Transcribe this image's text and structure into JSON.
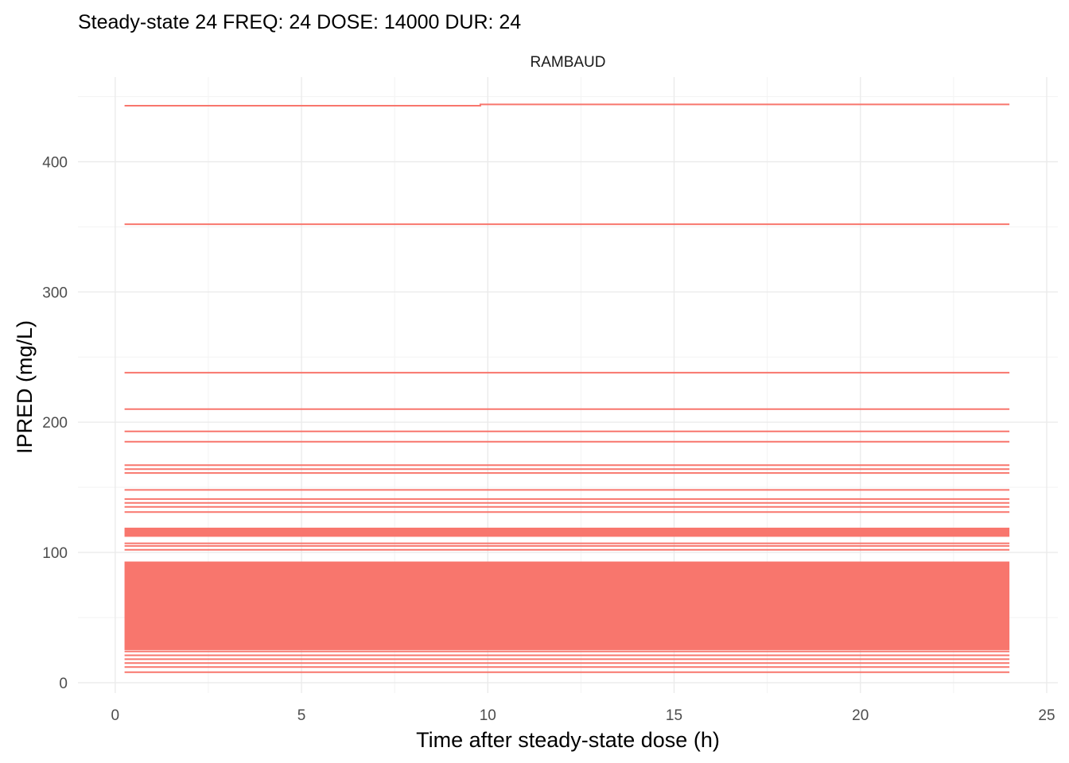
{
  "chart_data": {
    "type": "line",
    "title": "Steady-state 24 FREQ: 24 DOSE: 14000 DUR: 24",
    "facet_label": "RAMBAUD",
    "xlabel": "Time after steady-state dose (h)",
    "ylabel": "IPRED (mg/L)",
    "xlim": [
      -1,
      25.3
    ],
    "ylim": [
      -8,
      465
    ],
    "x_ticks": [
      0,
      5,
      10,
      15,
      20,
      25
    ],
    "y_ticks": [
      0,
      100,
      200,
      300,
      400
    ],
    "x_minor": [
      2.5,
      7.5,
      12.5,
      17.5,
      22.5
    ],
    "y_minor": [
      50,
      150,
      250,
      350,
      450
    ],
    "grid": true,
    "legend": "none",
    "series_color": "#F8766D",
    "time_range": [
      0.25,
      24
    ],
    "series": [
      {
        "x": [
          0.25,
          9.8,
          9.8,
          24
        ],
        "values": [
          443,
          443,
          444,
          444
        ]
      },
      {
        "x": [
          0.25,
          24
        ],
        "values": [
          352,
          352
        ]
      },
      {
        "x": [
          0.25,
          24
        ],
        "values": [
          238,
          238
        ]
      },
      {
        "x": [
          0.25,
          24
        ],
        "values": [
          210,
          210
        ]
      },
      {
        "x": [
          0.25,
          24
        ],
        "values": [
          193,
          193
        ]
      },
      {
        "x": [
          0.25,
          24
        ],
        "values": [
          185,
          185
        ]
      },
      {
        "x": [
          0.25,
          24
        ],
        "values": [
          167,
          167
        ]
      },
      {
        "x": [
          0.25,
          24
        ],
        "values": [
          164,
          164
        ]
      },
      {
        "x": [
          0.25,
          24
        ],
        "values": [
          161,
          161
        ]
      },
      {
        "x": [
          0.25,
          24
        ],
        "values": [
          148,
          148
        ]
      },
      {
        "x": [
          0.25,
          24
        ],
        "values": [
          141,
          141
        ]
      },
      {
        "x": [
          0.25,
          24
        ],
        "values": [
          138,
          138
        ]
      },
      {
        "x": [
          0.25,
          24
        ],
        "values": [
          135,
          135
        ]
      },
      {
        "x": [
          0.25,
          24
        ],
        "values": [
          131,
          131
        ]
      },
      {
        "x": [
          0.25,
          24
        ],
        "values": [
          107,
          107
        ]
      },
      {
        "x": [
          0.25,
          24
        ],
        "values": [
          105,
          105
        ]
      },
      {
        "x": [
          0.25,
          24
        ],
        "values": [
          102,
          102
        ]
      },
      {
        "x": [
          0.25,
          24
        ],
        "values": [
          24,
          24
        ]
      },
      {
        "x": [
          0.25,
          24
        ],
        "values": [
          21,
          21
        ]
      },
      {
        "x": [
          0.25,
          24
        ],
        "values": [
          18,
          18
        ]
      },
      {
        "x": [
          0.25,
          24
        ],
        "values": [
          15,
          15
        ]
      },
      {
        "x": [
          0.25,
          24
        ],
        "values": [
          12,
          12
        ]
      },
      {
        "x": [
          0.25,
          24
        ],
        "values": [
          8,
          8
        ]
      }
    ],
    "bands": [
      {
        "x": [
          0.25,
          24
        ],
        "range": [
          112,
          119
        ]
      },
      {
        "x": [
          0.25,
          24
        ],
        "range": [
          25,
          93
        ]
      }
    ]
  }
}
